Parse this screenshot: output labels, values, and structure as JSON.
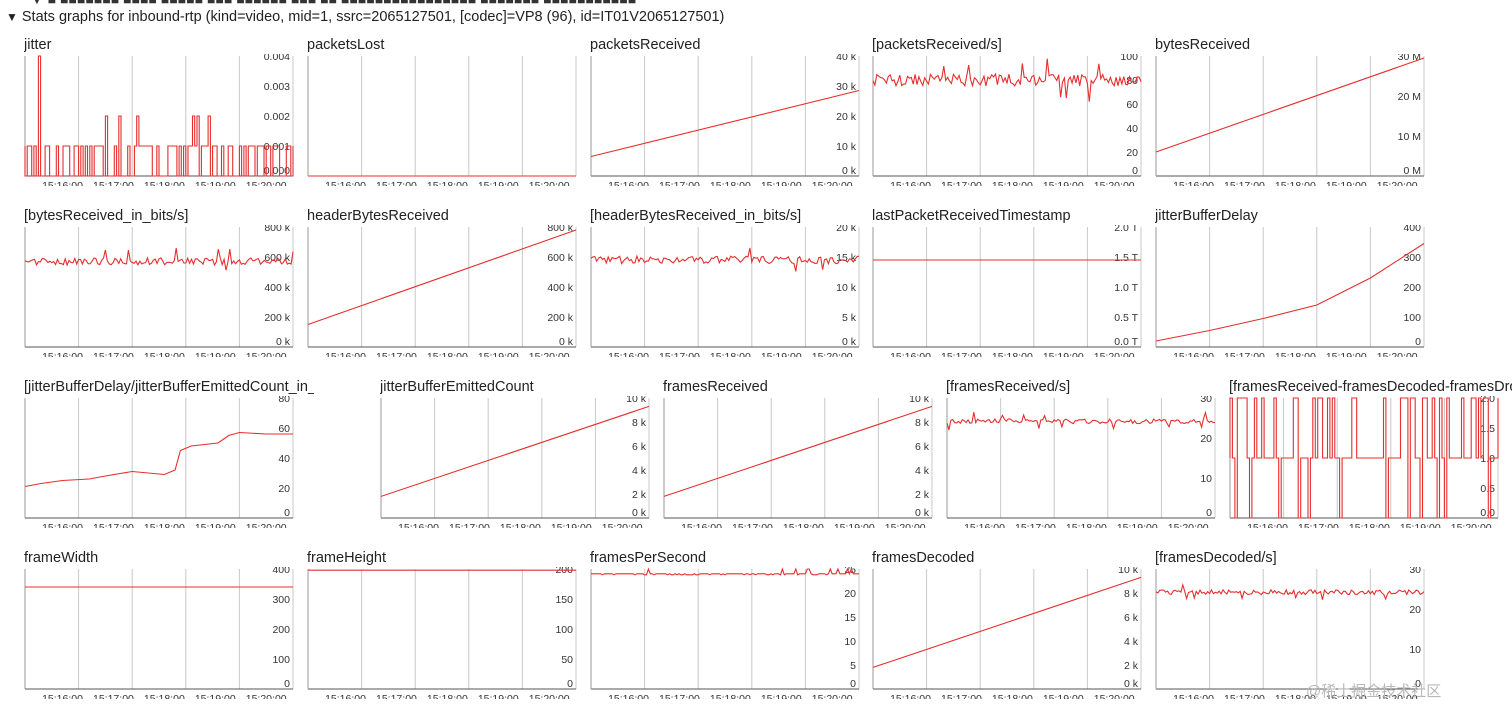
{
  "header": {
    "cut_text": "▼ ■ ■■■■■■■ ■■■■ ■■■■■ ■■■ ■■■■■■ ■■■ ■■ ■■■■■■■■■■■■■■■■ ■■■■■■■ ■■■■■■■■■■■",
    "toggle_icon": "triangle-down-icon",
    "title": "Stats graphs for inbound-rtp (kind=video, mid=1, ssrc=2065127501, [codec]=VP8 (96), id=IT01V2065127501)"
  },
  "watermark": "@稀土掘金技术社区",
  "colors": {
    "line": "#e62e2e",
    "grid": "#c8c8c8",
    "axis": "#555555",
    "tick_text": "#333333"
  },
  "time_ticks": [
    "15:16:00",
    "15:17:00",
    "15:18:00",
    "15:19:00",
    "15:20:00"
  ],
  "graphs": [
    {
      "id": "jitter",
      "title": "jitter",
      "y_ticks": [
        "0.004",
        "0.003",
        "0.002",
        "0.001",
        "0.000"
      ],
      "y_range": [
        0,
        0.004
      ],
      "shape": "jitter"
    },
    {
      "id": "packetsLost",
      "title": "packetsLost",
      "y_ticks": [],
      "y_range": [
        0,
        1
      ],
      "shape": "flat",
      "level": 0
    },
    {
      "id": "packetsReceived",
      "title": "packetsReceived",
      "y_ticks": [
        "40 k",
        "30 k",
        "20 k",
        "10 k",
        "0 k"
      ],
      "y_range": [
        0,
        40000
      ],
      "shape": "linear",
      "start": 6500,
      "end": 28500
    },
    {
      "id": "packetsReceivedPerSec",
      "title": "[packetsReceived/s]",
      "y_ticks": [
        "100",
        "80",
        "60",
        "40",
        "20",
        "0"
      ],
      "y_range": [
        0,
        100
      ],
      "shape": "noise",
      "base": 80,
      "amp": 5,
      "spikes": 0.05
    },
    {
      "id": "bytesReceived",
      "title": "bytesReceived",
      "y_ticks": [
        "30 M",
        "20 M",
        "10 M",
        "0 M"
      ],
      "y_range": [
        0,
        30000000
      ],
      "shape": "linear",
      "start": 6000000,
      "end": 29500000
    },
    {
      "id": "bytesReceivedInBits",
      "title": "[bytesReceived_in_bits/s]",
      "y_ticks": [
        "800 k",
        "600 k",
        "400 k",
        "200 k",
        "0 k"
      ],
      "y_range": [
        0,
        800000
      ],
      "shape": "noise",
      "base": 570000,
      "amp": 25000,
      "spikes": 0.04
    },
    {
      "id": "headerBytesReceived",
      "title": "headerBytesReceived",
      "y_ticks": [
        "800 k",
        "600 k",
        "400 k",
        "200 k",
        "0 k"
      ],
      "y_range": [
        0,
        800000
      ],
      "shape": "linear",
      "start": 150000,
      "end": 780000
    },
    {
      "id": "headerBytesReceivedInBits",
      "title": "[headerBytesReceived_in_bits/s]",
      "y_ticks": [
        "20 k",
        "15 k",
        "10 k",
        "5 k",
        "0 k"
      ],
      "y_range": [
        0,
        20000
      ],
      "shape": "noise",
      "base": 14500,
      "amp": 650,
      "spikes": 0.05
    },
    {
      "id": "lastPacketReceivedTimestamp",
      "title": "lastPacketReceivedTimestamp",
      "y_ticks": [
        "2.0 T",
        "1.5 T",
        "1.0 T",
        "0.5 T",
        "0.0 T"
      ],
      "y_range": [
        0,
        2.0
      ],
      "shape": "flat",
      "level": 1.45
    },
    {
      "id": "jitterBufferDelay",
      "title": "jitterBufferDelay",
      "y_ticks": [
        "400",
        "300",
        "200",
        "100",
        "0"
      ],
      "y_range": [
        0,
        400
      ],
      "shape": "curve",
      "pts": [
        [
          0,
          20
        ],
        [
          0.2,
          55
        ],
        [
          0.4,
          95
        ],
        [
          0.6,
          140
        ],
        [
          0.8,
          230
        ],
        [
          1,
          345
        ]
      ]
    },
    {
      "id": "jitterBufferDelayPerEmitted",
      "title": "[jitterBufferDelay/jitterBufferEmittedCount_in_ms]",
      "y_ticks": [
        "80",
        "60",
        "40",
        "20",
        "0"
      ],
      "y_range": [
        0,
        80
      ],
      "shape": "step",
      "pts": [
        [
          0,
          21
        ],
        [
          0.06,
          23
        ],
        [
          0.14,
          25
        ],
        [
          0.24,
          26
        ],
        [
          0.3,
          28
        ],
        [
          0.4,
          31
        ],
        [
          0.52,
          29
        ],
        [
          0.56,
          32
        ],
        [
          0.58,
          45
        ],
        [
          0.62,
          48
        ],
        [
          0.72,
          50
        ],
        [
          0.76,
          55
        ],
        [
          0.8,
          57
        ],
        [
          0.9,
          56
        ],
        [
          1,
          56
        ]
      ]
    },
    {
      "id": "jitterBufferEmittedCount",
      "title": "jitterBufferEmittedCount",
      "y_ticks": [
        "10 k",
        "8 k",
        "6 k",
        "4 k",
        "2 k",
        "0 k"
      ],
      "y_range": [
        0,
        10000
      ],
      "shape": "linear",
      "start": 1800,
      "end": 9300
    },
    {
      "id": "framesReceived",
      "title": "framesReceived",
      "y_ticks": [
        "10 k",
        "8 k",
        "6 k",
        "4 k",
        "2 k",
        "0 k"
      ],
      "y_range": [
        0,
        10000
      ],
      "shape": "linear",
      "start": 1800,
      "end": 9300
    },
    {
      "id": "framesReceivedPerSec",
      "title": "[framesReceived/s]",
      "y_ticks": [
        "30",
        "20",
        "10",
        "0"
      ],
      "y_range": [
        0,
        30
      ],
      "shape": "noise",
      "base": 24.2,
      "amp": 0.6,
      "spikes": 0.06
    },
    {
      "id": "framesDiff",
      "title": "[framesReceived-framesDecoded-framesDropped]",
      "y_ticks": [
        "2.0",
        "1.5",
        "1.0",
        "0.5",
        "0.0"
      ],
      "y_range": [
        0,
        2.0
      ],
      "shape": "binary"
    },
    {
      "id": "frameWidth",
      "title": "frameWidth",
      "y_ticks": [
        "400",
        "300",
        "200",
        "100",
        "0"
      ],
      "y_range": [
        0,
        400
      ],
      "shape": "flat",
      "level": 340
    },
    {
      "id": "frameHeight",
      "title": "frameHeight",
      "y_ticks": [
        "200",
        "150",
        "100",
        "50",
        "0"
      ],
      "y_range": [
        0,
        200
      ],
      "shape": "flat",
      "level": 198
    },
    {
      "id": "framesPerSecond",
      "title": "framesPerSecond",
      "y_ticks": [
        "25",
        "20",
        "15",
        "10",
        "5",
        "0"
      ],
      "y_range": [
        0,
        25
      ],
      "shape": "fps"
    },
    {
      "id": "framesDecoded",
      "title": "framesDecoded",
      "y_ticks": [
        "10 k",
        "8 k",
        "6 k",
        "4 k",
        "2 k",
        "0 k"
      ],
      "y_range": [
        0,
        10000
      ],
      "shape": "linear",
      "start": 1800,
      "end": 9300
    },
    {
      "id": "framesDecodedPerSec",
      "title": "[framesDecoded/s]",
      "y_ticks": [
        "30",
        "20",
        "10",
        "0"
      ],
      "y_range": [
        0,
        30
      ],
      "shape": "noise",
      "base": 24.2,
      "amp": 0.6,
      "spikes": 0.06
    }
  ]
}
